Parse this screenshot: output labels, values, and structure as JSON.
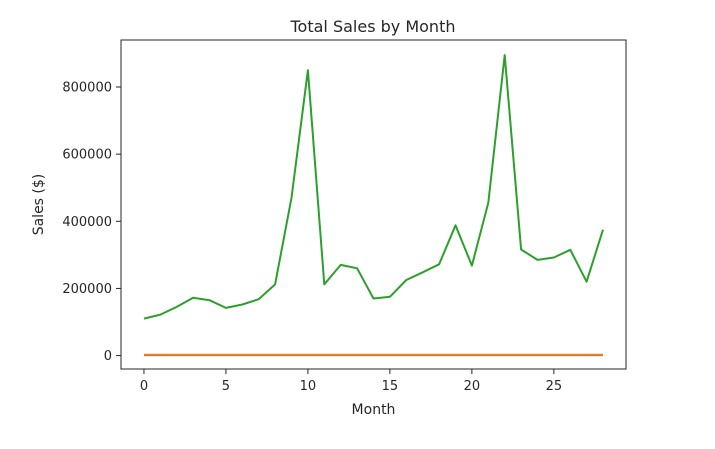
{
  "chart_data": {
    "type": "line",
    "title": "Total Sales by Month",
    "xlabel": "Month",
    "ylabel": "Sales ($)",
    "xlim": [
      -1.4,
      29.4
    ],
    "ylim": [
      -40000,
      940000
    ],
    "xticks": [
      0,
      5,
      10,
      15,
      20,
      25
    ],
    "yticks": [
      0,
      200000,
      400000,
      600000,
      800000
    ],
    "grid": false,
    "x": [
      0,
      1,
      2,
      3,
      4,
      5,
      6,
      7,
      8,
      9,
      10,
      11,
      12,
      13,
      14,
      15,
      16,
      17,
      18,
      19,
      20,
      21,
      22,
      23,
      24,
      25,
      26,
      27,
      28
    ],
    "series": [
      {
        "color": "#1f77b4",
        "values": [
          1500,
          1500,
          1500,
          1500,
          1500,
          1500,
          1500,
          1500,
          1500,
          1500,
          1500,
          1500,
          1500,
          1500,
          1500,
          1500,
          1500,
          1500,
          1500,
          1500,
          1500,
          1500,
          1500,
          1500,
          1500,
          1500,
          1500,
          1500,
          1500
        ]
      },
      {
        "color": "#ff7f0e",
        "values": [
          2500,
          2500,
          2500,
          2500,
          2500,
          2500,
          2500,
          2500,
          2500,
          2500,
          2500,
          2500,
          2500,
          2500,
          2500,
          2500,
          2500,
          2500,
          2500,
          2500,
          2500,
          2500,
          2500,
          2500,
          2500,
          2500,
          2500,
          2500,
          2500
        ]
      },
      {
        "color": "#2ca02c",
        "values": [
          110000,
          122000,
          145000,
          172000,
          165000,
          142000,
          152000,
          168000,
          212000,
          470000,
          850000,
          212000,
          270000,
          260000,
          170000,
          175000,
          225000,
          248000,
          272000,
          388000,
          268000,
          455000,
          895000,
          316000,
          285000,
          292000,
          315000,
          220000,
          375000
        ]
      }
    ]
  }
}
